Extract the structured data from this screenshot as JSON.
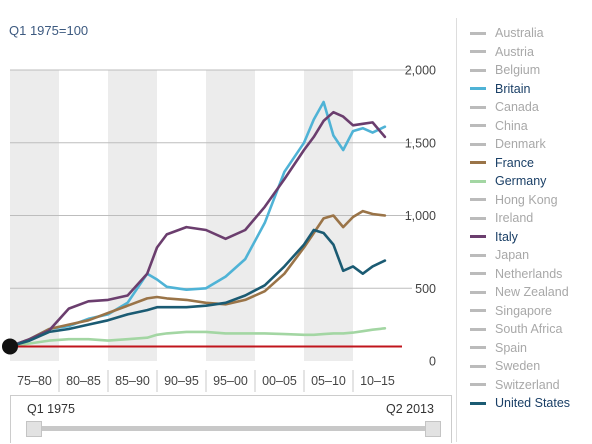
{
  "chart_data": {
    "type": "line",
    "subtitle": "Q1 1975=100",
    "x": [
      1975,
      1977,
      1979,
      1981,
      1983,
      1985,
      1987,
      1989,
      1990,
      1991,
      1993,
      1995,
      1997,
      1999,
      2001,
      2003,
      2005,
      2006,
      2007,
      2008,
      2009,
      2010,
      2011,
      2012,
      2013.25
    ],
    "x_categories": [
      "75–80",
      "80–85",
      "85–90",
      "90–95",
      "95–00",
      "00–05",
      "05–10",
      "10–15"
    ],
    "y_ticks": [
      "0",
      "500",
      "1,000",
      "1,500",
      "2,000"
    ],
    "ylim": [
      0,
      2000
    ],
    "xlim": [
      1975,
      2015
    ],
    "reference_line": {
      "value": 100,
      "color": "#c0151c"
    },
    "series": [
      {
        "name": "Britain",
        "color": "#4fb3d6",
        "values": [
          100,
          150,
          220,
          240,
          290,
          320,
          400,
          600,
          560,
          510,
          490,
          500,
          580,
          700,
          950,
          1300,
          1500,
          1660,
          1780,
          1550,
          1450,
          1580,
          1600,
          1570,
          1610
        ]
      },
      {
        "name": "France",
        "color": "#9a7448",
        "values": [
          100,
          150,
          220,
          250,
          280,
          330,
          380,
          430,
          440,
          430,
          420,
          400,
          390,
          420,
          480,
          600,
          780,
          880,
          980,
          1000,
          920,
          990,
          1030,
          1010,
          1000
        ]
      },
      {
        "name": "Germany",
        "color": "#a3d6a3",
        "values": [
          100,
          120,
          140,
          150,
          150,
          140,
          150,
          160,
          180,
          190,
          200,
          200,
          190,
          190,
          190,
          185,
          180,
          180,
          185,
          190,
          190,
          195,
          205,
          215,
          225
        ]
      },
      {
        "name": "Italy",
        "color": "#6b3e6e",
        "values": [
          100,
          150,
          210,
          360,
          410,
          420,
          450,
          600,
          780,
          870,
          920,
          900,
          840,
          900,
          1060,
          1250,
          1450,
          1540,
          1650,
          1710,
          1680,
          1620,
          1630,
          1640,
          1540
        ]
      },
      {
        "name": "United States",
        "color": "#1b5b73",
        "values": [
          100,
          140,
          200,
          220,
          250,
          280,
          320,
          350,
          370,
          370,
          370,
          380,
          400,
          450,
          520,
          650,
          800,
          900,
          880,
          800,
          620,
          650,
          600,
          650,
          690
        ]
      }
    ]
  },
  "legend": [
    {
      "label": "Australia",
      "active": false
    },
    {
      "label": "Austria",
      "active": false
    },
    {
      "label": "Belgium",
      "active": false
    },
    {
      "label": "Britain",
      "active": true,
      "color": "#4fb3d6"
    },
    {
      "label": "Canada",
      "active": false
    },
    {
      "label": "China",
      "active": false
    },
    {
      "label": "Denmark",
      "active": false
    },
    {
      "label": "France",
      "active": true,
      "color": "#9a7448"
    },
    {
      "label": "Germany",
      "active": true,
      "color": "#a3d6a3"
    },
    {
      "label": "Hong Kong",
      "active": false
    },
    {
      "label": "Ireland",
      "active": false
    },
    {
      "label": "Italy",
      "active": true,
      "color": "#6b3e6e"
    },
    {
      "label": "Japan",
      "active": false
    },
    {
      "label": "Netherlands",
      "active": false
    },
    {
      "label": "New Zealand",
      "active": false
    },
    {
      "label": "Singapore",
      "active": false
    },
    {
      "label": "South Africa",
      "active": false
    },
    {
      "label": "Spain",
      "active": false
    },
    {
      "label": "Sweden",
      "active": false
    },
    {
      "label": "Switzerland",
      "active": false
    },
    {
      "label": "United States",
      "active": true,
      "color": "#1b5b73"
    }
  ],
  "range": {
    "start": "Q1 1975",
    "end": "Q2 2013"
  }
}
